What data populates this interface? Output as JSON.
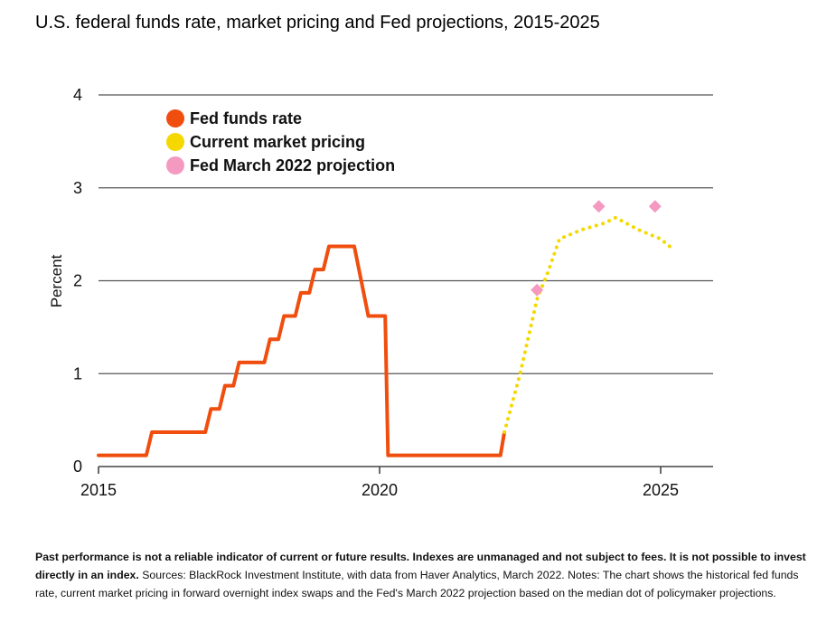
{
  "title": "U.S. federal funds rate, market pricing and Fed projections, 2015-2025",
  "footnote": {
    "bold_text": "Past performance is not a reliable indicator of current or future results. Indexes are unmanaged and not subject to fees. It is not possible to invest directly in an index.",
    "text": " Sources: BlackRock Investment Institute, with data from Haver Analytics, March 2022. Notes: The chart shows the historical fed funds rate, current market pricing in forward overnight index swaps and the Fed's March 2022 projection based on the median dot of policymaker projections."
  },
  "chart_data": {
    "type": "line",
    "ylabel": "Percent",
    "xlabel": "",
    "xlim": [
      2015,
      2026
    ],
    "ylim": [
      0,
      4
    ],
    "x_ticks": [
      {
        "value": 2015,
        "label": "2015"
      },
      {
        "value": 2020,
        "label": "2020"
      },
      {
        "value": 2025,
        "label": "2025"
      }
    ],
    "y_ticks": [
      {
        "value": 0,
        "label": "0"
      },
      {
        "value": 1,
        "label": "1"
      },
      {
        "value": 2,
        "label": "2"
      },
      {
        "value": 3,
        "label": "3"
      },
      {
        "value": 4,
        "label": "4"
      }
    ],
    "grid": true,
    "legend_position": "top-left",
    "series": [
      {
        "name": "Fed funds rate",
        "style": "step-line",
        "color": "#f04e0f",
        "points": [
          [
            2015.0,
            0.12
          ],
          [
            2015.85,
            0.12
          ],
          [
            2015.95,
            0.37
          ],
          [
            2016.9,
            0.37
          ],
          [
            2017.0,
            0.62
          ],
          [
            2017.15,
            0.62
          ],
          [
            2017.25,
            0.87
          ],
          [
            2017.4,
            0.87
          ],
          [
            2017.5,
            1.12
          ],
          [
            2017.95,
            1.12
          ],
          [
            2018.05,
            1.37
          ],
          [
            2018.2,
            1.37
          ],
          [
            2018.3,
            1.62
          ],
          [
            2018.5,
            1.62
          ],
          [
            2018.6,
            1.87
          ],
          [
            2018.75,
            1.87
          ],
          [
            2018.85,
            2.12
          ],
          [
            2019.0,
            2.12
          ],
          [
            2019.1,
            2.37
          ],
          [
            2019.55,
            2.37
          ],
          [
            2019.8,
            1.62
          ],
          [
            2020.1,
            1.62
          ],
          [
            2020.15,
            0.12
          ],
          [
            2022.15,
            0.12
          ],
          [
            2022.22,
            0.37
          ]
        ]
      },
      {
        "name": "Current market pricing",
        "style": "dotted-line",
        "color": "#f5d800",
        "points": [
          [
            2022.22,
            0.37
          ],
          [
            2022.5,
            1.0
          ],
          [
            2022.8,
            1.8
          ],
          [
            2023.0,
            2.1
          ],
          [
            2023.2,
            2.45
          ],
          [
            2023.6,
            2.55
          ],
          [
            2024.0,
            2.62
          ],
          [
            2024.2,
            2.68
          ],
          [
            2024.6,
            2.55
          ],
          [
            2025.0,
            2.45
          ],
          [
            2025.2,
            2.35
          ]
        ]
      },
      {
        "name": "Fed March 2022 projection",
        "style": "diamond-markers",
        "color": "#f49ac1",
        "points": [
          [
            2022.8,
            1.9
          ],
          [
            2023.9,
            2.8
          ],
          [
            2024.9,
            2.8
          ]
        ]
      }
    ]
  }
}
